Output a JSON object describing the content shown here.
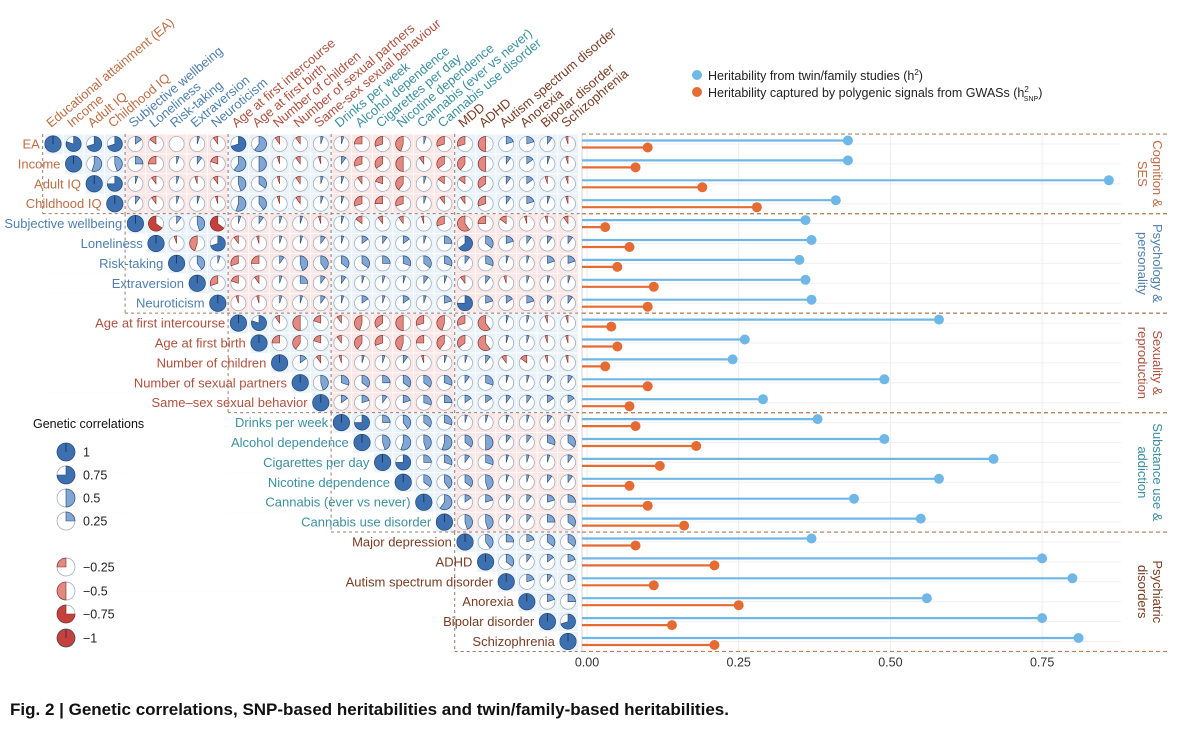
{
  "caption": {
    "label": "Fig. 2 |",
    "text": "Genetic correlations, SNP-based heritabilities and twin/family-based heritabilities."
  },
  "legend": {
    "twin_label": "Heritability from twin/family studies (h",
    "twin_sup": "2",
    "twin_close": ")",
    "snp_label": "Heritability captured by polygenic signals from GWASs (h",
    "snp_sup": "2",
    "snp_sub": "SNP",
    "snp_close": ")",
    "rg_title": "Genetic correlations",
    "rg_values": [
      "1",
      "0.75",
      "0.5",
      "0.25",
      "−0.25",
      "−0.5",
      "−0.75",
      "−1"
    ]
  },
  "colors": {
    "twin": "#6fb7e6",
    "snp": "#e56b33",
    "pos_fill": "#3c70b0",
    "neg_fill": "#c6413b",
    "cognition": "#c06d45",
    "psychology": "#4e7fb0",
    "sexuality": "#b0503e",
    "substance": "#3b8fa0",
    "psychiatric": "#7a3b22"
  },
  "column_labels": [
    "Educational attainment (EA)",
    "Income",
    "Adult IQ",
    "Childhood IQ",
    "Subjective wellbeing",
    "Loneliness",
    "Risk-taking",
    "Extraversion",
    "Neuroticism",
    "Age at first intercourse",
    "Age at first birth",
    "Number of children",
    "Number of sexual partners",
    "Same-sex sexual behaviour",
    "Drinks per week",
    "Alcohol dependence",
    "Cigarettes per day",
    "Nicotine dependence",
    "Cannabis (ever vs never)",
    "Cannabis use disorder",
    "MDD",
    "ADHD",
    "Autism spectrum disorder",
    "Anorexia",
    "Bipolar disorder",
    "Schizophrenia"
  ],
  "row_labels": [
    "EA",
    "Income",
    "Adult IQ",
    "Childhood IQ",
    "Subjective wellbeing",
    "Loneliness",
    "Risk-taking",
    "Extraversion",
    "Neuroticism",
    "Age at first intercourse",
    "Age at first birth",
    "Number of children",
    "Number of sexual partners",
    "Same–sex sexual behavior",
    "Drinks per week",
    "Alcohol dependence",
    "Cigarettes per day",
    "Nicotine dependence",
    "Cannabis (ever vs never)",
    "Cannabis use disorder",
    "Major depression",
    "ADHD",
    "Autism spectrum disorder",
    "Anorexia",
    "Bipolar disorder",
    "Schizophrenia"
  ],
  "groups": [
    {
      "label": [
        "Cognition &",
        "SES"
      ],
      "color_key": "cognition",
      "start": 0,
      "end": 4
    },
    {
      "label": [
        "Psychology &",
        "personality"
      ],
      "color_key": "psychology",
      "start": 4,
      "end": 9
    },
    {
      "label": [
        "Sexuality &",
        "reproduction"
      ],
      "color_key": "sexuality",
      "start": 9,
      "end": 14
    },
    {
      "label": [
        "Substance use &",
        "addiction"
      ],
      "color_key": "substance",
      "start": 14,
      "end": 20
    },
    {
      "label": [
        "Psychiatric",
        "disorders"
      ],
      "color_key": "psychiatric",
      "start": 20,
      "end": 26
    }
  ],
  "chart_data": [
    {
      "type": "heatmap",
      "title": "Genetic correlations",
      "description_values": "lower-left triangle-free matrix; r_g values per row from column 0..25; null = not shown",
      "matrix": [
        [
          1,
          0.8,
          0.7,
          0.7,
          0.15,
          -0.15,
          0,
          0.05,
          -0.1,
          0.7,
          0.6,
          -0.1,
          -0.1,
          0.05,
          0.05,
          -0.25,
          -0.3,
          -0.45,
          0.05,
          -0.3,
          -0.3,
          -0.5,
          0.2,
          0.2,
          0.1,
          -0.05
        ],
        [
          0.8,
          1,
          0.55,
          0.45,
          0.25,
          -0.25,
          0.05,
          0.1,
          -0.2,
          0.6,
          0.5,
          -0.05,
          -0.1,
          -0.05,
          0.1,
          -0.3,
          -0.35,
          -0.5,
          -0.1,
          -0.35,
          -0.4,
          -0.5,
          0.1,
          0.15,
          0.05,
          -0.05
        ],
        [
          0.7,
          0.55,
          1,
          0.75,
          0.05,
          -0.1,
          0.05,
          -0.05,
          -0.1,
          0.45,
          0.35,
          -0.05,
          -0.1,
          0.05,
          0.05,
          -0.1,
          -0.2,
          -0.4,
          0.05,
          -0.15,
          -0.15,
          -0.35,
          0.1,
          0.15,
          -0.05,
          -0.05
        ],
        [
          0.7,
          0.45,
          0.75,
          1,
          0.1,
          -0.1,
          0.05,
          0.05,
          -0.05,
          0.55,
          0.4,
          -0.05,
          -0.1,
          0.05,
          0.05,
          -0.3,
          -0.25,
          -0.3,
          0.05,
          -0.1,
          -0.1,
          -0.3,
          0.1,
          0.2,
          0.05,
          -0.05
        ],
        [
          0.15,
          0.25,
          0.05,
          0.1,
          1,
          -0.65,
          0.1,
          0.45,
          -0.65,
          0.05,
          0.1,
          0.05,
          0.05,
          -0.05,
          0.05,
          -0.15,
          -0.1,
          -0.1,
          -0.05,
          -0.3,
          -0.6,
          -0.25,
          -0.15,
          -0.05,
          -0.05,
          -0.1
        ],
        [
          -0.15,
          -0.25,
          -0.1,
          -0.1,
          -0.65,
          1,
          -0.05,
          -0.45,
          0.7,
          -0.1,
          -0.05,
          0.05,
          0.05,
          0.1,
          0.05,
          0.15,
          0.1,
          0.15,
          0.05,
          0.25,
          0.65,
          0.35,
          0.2,
          0.1,
          0.1,
          0.1
        ],
        [
          0,
          0.05,
          0.05,
          0.05,
          0.1,
          -0.05,
          1,
          0.4,
          0.05,
          -0.3,
          -0.25,
          0.1,
          0.45,
          0.4,
          0.35,
          0.35,
          0.25,
          0.3,
          0.35,
          0.3,
          0.1,
          0.3,
          0.05,
          0.05,
          0.2,
          0.2
        ],
        [
          0.05,
          0.1,
          -0.05,
          0.05,
          0.45,
          -0.45,
          0.4,
          1,
          -0.3,
          -0.2,
          -0.1,
          0.05,
          0.25,
          0.1,
          0.1,
          0.05,
          0.05,
          0.05,
          0.1,
          0.05,
          -0.1,
          0.1,
          -0.05,
          0.05,
          0.05,
          0.05
        ],
        [
          -0.1,
          -0.2,
          -0.1,
          -0.05,
          -0.65,
          0.7,
          0.05,
          -0.3,
          1,
          -0.05,
          -0.05,
          0.05,
          0.05,
          0.1,
          0.05,
          0.15,
          0.05,
          0.15,
          0.05,
          0.2,
          0.75,
          0.2,
          0.15,
          0.2,
          0.1,
          0.1
        ],
        [
          0.7,
          0.6,
          0.45,
          0.55,
          0.05,
          -0.1,
          -0.3,
          -0.2,
          -0.05,
          1,
          0.8,
          -0.1,
          -0.5,
          -0.2,
          -0.1,
          -0.45,
          -0.35,
          -0.5,
          -0.3,
          -0.45,
          -0.3,
          -0.6,
          0.05,
          0.05,
          -0.05,
          -0.05
        ],
        [
          0.6,
          0.5,
          0.35,
          0.4,
          0.1,
          -0.05,
          -0.25,
          -0.1,
          -0.05,
          0.8,
          1,
          -0.25,
          -0.4,
          -0.2,
          -0.1,
          -0.4,
          -0.3,
          -0.45,
          -0.25,
          -0.4,
          -0.35,
          -0.6,
          0.05,
          0.05,
          -0.05,
          -0.05
        ],
        [
          -0.1,
          -0.05,
          -0.05,
          -0.05,
          0.05,
          0.05,
          0.1,
          0.05,
          0.05,
          -0.1,
          -0.25,
          1,
          0.15,
          -0.1,
          -0.05,
          0.05,
          0.05,
          0.1,
          -0.05,
          0.05,
          0.05,
          0.1,
          -0.1,
          -0.15,
          -0.05,
          -0.05
        ],
        [
          -0.1,
          -0.1,
          -0.1,
          -0.1,
          0.05,
          0.05,
          0.45,
          0.25,
          0.05,
          -0.5,
          -0.4,
          0.15,
          1,
          0.45,
          0.3,
          0.35,
          0.25,
          0.35,
          0.35,
          0.3,
          0.1,
          0.3,
          0.05,
          0.05,
          0.1,
          0.1
        ],
        [
          0.05,
          -0.05,
          0.05,
          0.05,
          -0.05,
          0.1,
          0.4,
          0.1,
          0.1,
          -0.2,
          -0.2,
          -0.1,
          0.45,
          1,
          0.15,
          0.2,
          0.1,
          0.2,
          0.3,
          0.25,
          0.15,
          0.15,
          0.1,
          0.1,
          0.15,
          0.15
        ],
        [
          0.05,
          0.1,
          0.05,
          0.05,
          0.05,
          0.05,
          0.35,
          0.1,
          0.05,
          -0.1,
          -0.1,
          -0.05,
          0.3,
          0.15,
          1,
          0.75,
          0.25,
          0.4,
          0.35,
          0.3,
          0.05,
          0.05,
          0.05,
          0.05,
          0.1,
          0.05
        ],
        [
          -0.25,
          -0.3,
          -0.1,
          -0.3,
          -0.15,
          0.15,
          0.35,
          0.05,
          0.15,
          -0.45,
          -0.4,
          0.05,
          0.35,
          0.2,
          0.75,
          1,
          0.45,
          0.55,
          0.45,
          0.55,
          0.35,
          0.5,
          0.1,
          0.1,
          0.3,
          0.35
        ],
        [
          -0.3,
          -0.35,
          -0.2,
          -0.25,
          -0.1,
          0.1,
          0.25,
          0.05,
          0.05,
          -0.35,
          -0.3,
          0.05,
          0.25,
          0.1,
          0.25,
          0.45,
          1,
          0.75,
          0.25,
          0.3,
          0.1,
          0.3,
          0.05,
          0.05,
          0.05,
          0.1
        ],
        [
          -0.45,
          -0.5,
          -0.4,
          -0.3,
          -0.1,
          0.15,
          0.3,
          0.05,
          0.15,
          -0.5,
          -0.45,
          0.1,
          0.35,
          0.2,
          0.4,
          0.55,
          0.75,
          1,
          0.35,
          0.4,
          0.35,
          0.45,
          0.05,
          0.05,
          0.1,
          0.1
        ],
        [
          0.05,
          -0.1,
          0.05,
          0.05,
          -0.05,
          0.05,
          0.35,
          0.1,
          0.05,
          -0.3,
          -0.25,
          -0.05,
          0.35,
          0.3,
          0.35,
          0.45,
          0.25,
          0.35,
          1,
          0.6,
          0.15,
          0.2,
          0.1,
          0.1,
          0.2,
          0.25
        ],
        [
          -0.3,
          -0.35,
          -0.15,
          -0.1,
          -0.3,
          0.25,
          0.3,
          0.05,
          0.2,
          -0.45,
          -0.4,
          0.05,
          0.3,
          0.25,
          0.3,
          0.55,
          0.3,
          0.4,
          0.6,
          1,
          0.45,
          0.45,
          0.1,
          0.1,
          0.25,
          0.35
        ],
        [
          -0.3,
          -0.4,
          -0.15,
          -0.1,
          -0.6,
          0.65,
          0.1,
          -0.1,
          0.75,
          -0.3,
          -0.35,
          0.05,
          0.1,
          0.15,
          0.05,
          0.35,
          0.1,
          0.35,
          0.15,
          0.45,
          1,
          0.4,
          0.25,
          0.2,
          0.35,
          0.35
        ],
        [
          -0.5,
          -0.5,
          -0.35,
          -0.3,
          -0.25,
          0.35,
          0.3,
          0.1,
          0.2,
          -0.6,
          -0.6,
          0.1,
          0.3,
          0.15,
          0.05,
          0.5,
          0.3,
          0.45,
          0.2,
          0.45,
          0.4,
          1,
          0.35,
          0.1,
          0.15,
          0.2
        ],
        [
          0.2,
          0.1,
          0.1,
          0.1,
          -0.15,
          0.2,
          0.05,
          -0.05,
          0.15,
          0.05,
          0.05,
          -0.1,
          0.05,
          0.1,
          0.05,
          0.1,
          0.05,
          0.05,
          0.1,
          0.1,
          0.25,
          0.35,
          1,
          0.2,
          0.1,
          0.2
        ],
        [
          0.2,
          0.15,
          0.15,
          0.2,
          -0.05,
          0.1,
          0.05,
          0.05,
          0.2,
          0.05,
          0.05,
          -0.15,
          0.05,
          0.1,
          0.05,
          0.1,
          0.05,
          0.05,
          0.1,
          0.1,
          0.2,
          0.1,
          0.2,
          1,
          0.2,
          0.25
        ],
        [
          0.1,
          0.05,
          -0.05,
          0.05,
          -0.05,
          0.1,
          0.2,
          0.05,
          0.1,
          -0.05,
          -0.05,
          -0.05,
          0.1,
          0.15,
          0.1,
          0.3,
          0.05,
          0.1,
          0.2,
          0.25,
          0.35,
          0.15,
          0.1,
          0.2,
          1,
          0.7
        ],
        [
          -0.05,
          -0.05,
          -0.05,
          -0.05,
          -0.1,
          0.1,
          0.2,
          0.05,
          0.1,
          -0.05,
          -0.05,
          -0.05,
          0.1,
          0.15,
          0.05,
          0.35,
          0.1,
          0.1,
          0.25,
          0.35,
          0.35,
          0.2,
          0.2,
          0.25,
          0.7,
          1
        ]
      ]
    },
    {
      "type": "lollipop",
      "categories": [
        "EA",
        "Income",
        "Adult IQ",
        "Childhood IQ",
        "Subjective wellbeing",
        "Loneliness",
        "Risk-taking",
        "Extraversion",
        "Neuroticism",
        "Age at first intercourse",
        "Age at first birth",
        "Number of children",
        "Number of sexual partners",
        "Same–sex sexual behavior",
        "Drinks per week",
        "Alcohol dependence",
        "Cigarettes per day",
        "Nicotine dependence",
        "Cannabis (ever vs never)",
        "Cannabis use disorder",
        "Major depression",
        "ADHD",
        "Autism spectrum disorder",
        "Anorexia",
        "Bipolar disorder",
        "Schizophrenia"
      ],
      "series": [
        {
          "name": "Heritability from twin/family studies (h2)",
          "values": [
            0.43,
            0.43,
            0.86,
            0.41,
            0.36,
            0.37,
            0.35,
            0.36,
            0.37,
            0.58,
            0.26,
            0.24,
            0.49,
            0.29,
            0.38,
            0.49,
            0.67,
            0.58,
            0.44,
            0.55,
            0.37,
            0.75,
            0.8,
            0.56,
            0.75,
            0.81
          ]
        },
        {
          "name": "Heritability captured by polygenic signals from GWASs (h2SNP)",
          "values": [
            0.1,
            0.08,
            0.19,
            0.28,
            0.03,
            0.07,
            0.05,
            0.11,
            0.1,
            0.04,
            0.05,
            0.03,
            0.1,
            0.07,
            0.08,
            0.18,
            0.12,
            0.07,
            0.1,
            0.16,
            0.08,
            0.21,
            0.11,
            0.25,
            0.14,
            0.21
          ]
        }
      ],
      "xticks": [
        "0.00",
        "0.25",
        "0.50",
        "0.75"
      ],
      "xlim": [
        0,
        0.88
      ]
    }
  ]
}
